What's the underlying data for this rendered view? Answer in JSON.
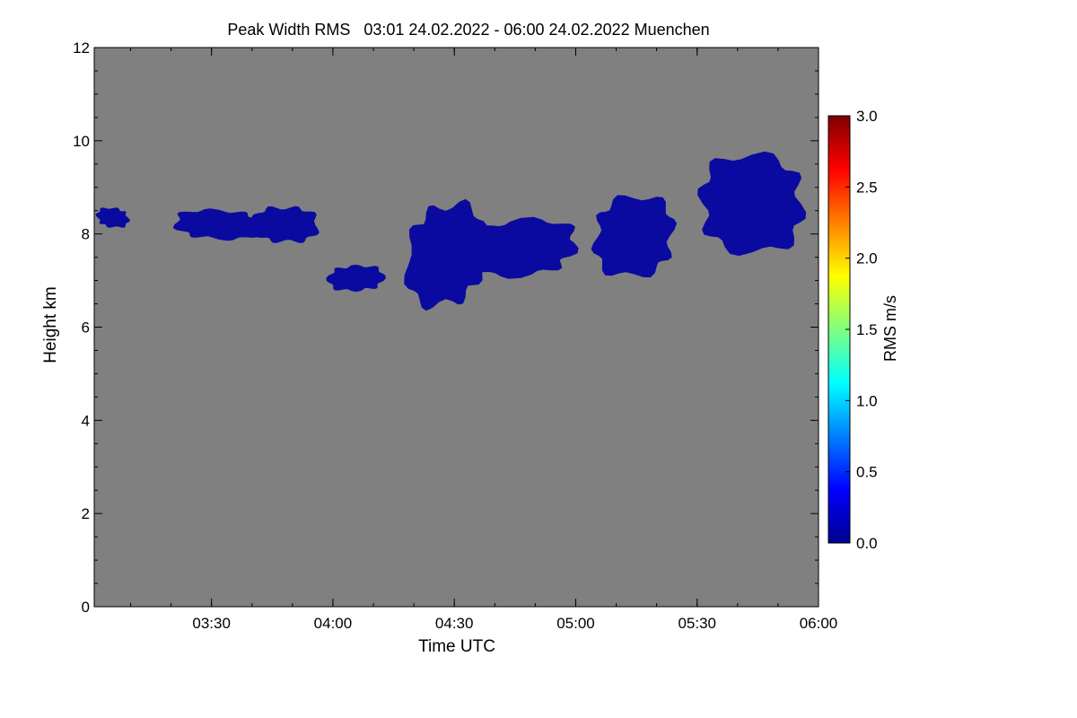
{
  "chart_data": {
    "type": "heatmap",
    "title": "Peak Width RMS   03:01 24.02.2022 - 06:00 24.02.2022 Muenchen",
    "xlabel": "Time UTC",
    "ylabel": "Height km",
    "colorbar_label": "RMS m/s",
    "x_unit": "hours UTC",
    "xlim": [
      3.017,
      6.0
    ],
    "ylim": [
      0,
      12
    ],
    "x_ticks": [
      {
        "value": 3.5,
        "label": "03:30"
      },
      {
        "value": 4.0,
        "label": "04:00"
      },
      {
        "value": 4.5,
        "label": "04:30"
      },
      {
        "value": 5.0,
        "label": "05:00"
      },
      {
        "value": 5.5,
        "label": "05:30"
      },
      {
        "value": 6.0,
        "label": "06:00"
      }
    ],
    "y_ticks": [
      {
        "value": 0,
        "label": "0"
      },
      {
        "value": 2,
        "label": "2"
      },
      {
        "value": 4,
        "label": "4"
      },
      {
        "value": 6,
        "label": "6"
      },
      {
        "value": 8,
        "label": "8"
      },
      {
        "value": 10,
        "label": "10"
      },
      {
        "value": 12,
        "label": "12"
      }
    ],
    "colorbar": {
      "range": [
        0.0,
        3.0
      ],
      "ticks": [
        "0.0",
        "0.5",
        "1.0",
        "1.5",
        "2.0",
        "2.5",
        "3.0"
      ],
      "colormap": "jet"
    },
    "background_color": "#808080",
    "data_color": "#0a0aa0",
    "regions": [
      {
        "name": "cloud-left-edge",
        "x": [
          3.017,
          3.17
        ],
        "y": [
          8.1,
          8.6
        ],
        "value": 0.05
      },
      {
        "name": "cloud-band-west",
        "x": [
          3.33,
          3.73
        ],
        "y": [
          7.8,
          8.6
        ],
        "value": 0.05
      },
      {
        "name": "cloud-band-west-2",
        "x": [
          3.66,
          3.95
        ],
        "y": [
          7.7,
          8.7
        ],
        "value": 0.05
      },
      {
        "name": "cloud-patch-low-west",
        "x": [
          3.97,
          4.22
        ],
        "y": [
          6.7,
          7.4
        ],
        "value": 0.05
      },
      {
        "name": "cloud-main-core",
        "x": [
          4.28,
          4.65
        ],
        "y": [
          6.2,
          8.9
        ],
        "value": 0.05
      },
      {
        "name": "cloud-band-center",
        "x": [
          4.5,
          5.05
        ],
        "y": [
          7.0,
          8.4
        ],
        "value": 0.05
      },
      {
        "name": "cloud-patch-east",
        "x": [
          5.03,
          5.45
        ],
        "y": [
          7.0,
          8.9
        ],
        "value": 0.05
      },
      {
        "name": "cloud-band-east",
        "x": [
          5.45,
          6.0
        ],
        "y": [
          7.5,
          9.8
        ],
        "value": 0.05
      }
    ]
  }
}
